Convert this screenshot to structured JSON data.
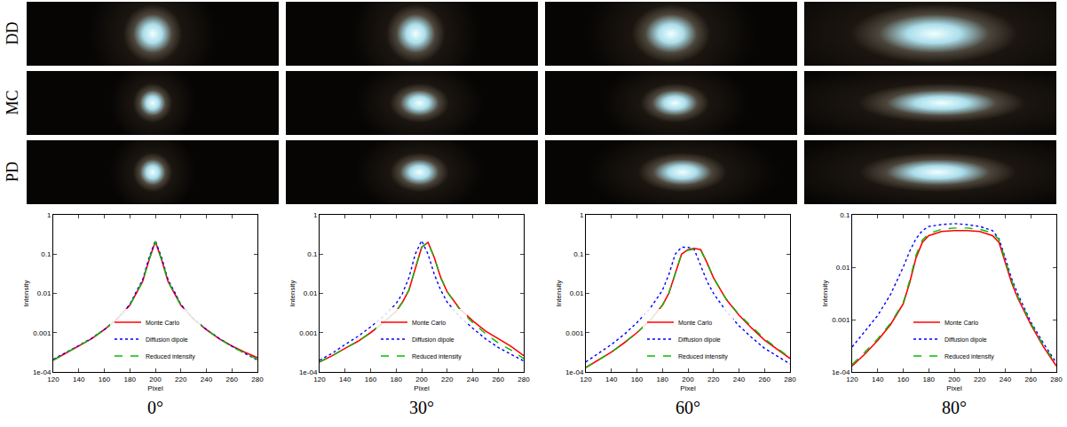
{
  "image_rows": [
    "DD",
    "MC",
    "PD"
  ],
  "chart_data": [
    {
      "type": "line",
      "title": "0°",
      "x_label": "Pixel",
      "y_label": "Intensity",
      "log": "y",
      "grid": false,
      "legend": "bottom",
      "x": [
        120,
        130,
        140,
        150,
        160,
        170,
        180,
        185,
        190,
        195,
        200,
        205,
        210,
        215,
        220,
        230,
        240,
        250,
        260,
        270,
        280
      ],
      "xlim": [
        120,
        280
      ],
      "xticks": [
        120,
        140,
        160,
        180,
        200,
        220,
        240,
        260,
        280
      ],
      "ylim": [
        0.0001,
        1
      ],
      "yticks": [
        {
          "value": 0.0001,
          "label": "1e-04"
        },
        0.001,
        0.01,
        0.1,
        1
      ],
      "series": [
        {
          "name": "Monte Carlo",
          "color": "#ff0000",
          "line_style": "solid",
          "values": [
            0.0002,
            0.0003,
            0.00045,
            0.0007,
            0.0012,
            0.0022,
            0.005,
            0.01,
            0.02,
            0.07,
            0.21,
            0.07,
            0.02,
            0.01,
            0.005,
            0.0022,
            0.0012,
            0.0007,
            0.00046,
            0.00032,
            0.00023
          ]
        },
        {
          "name": "Diffusion dipole",
          "color": "#0000ff",
          "line_style": "dotted",
          "values": [
            0.00021,
            0.00031,
            0.00047,
            0.00072,
            0.0012,
            0.0023,
            0.0052,
            0.011,
            0.022,
            0.08,
            0.22,
            0.08,
            0.022,
            0.011,
            0.0052,
            0.0023,
            0.0012,
            0.00072,
            0.00045,
            0.0003,
            0.0002
          ]
        },
        {
          "name": "Reduced intensity",
          "color": "#00c000",
          "line_style": "dashed",
          "values": [
            0.0002,
            0.0003,
            0.00045,
            0.0007,
            0.0012,
            0.0022,
            0.005,
            0.01,
            0.02,
            0.07,
            0.21,
            0.07,
            0.02,
            0.01,
            0.005,
            0.0022,
            0.0012,
            0.0007,
            0.00044,
            0.0003,
            0.00021
          ]
        }
      ]
    },
    {
      "type": "line",
      "title": "30°",
      "x_label": "Pixel",
      "y_label": "Intensity",
      "log": "y",
      "grid": false,
      "legend": "bottom",
      "x": [
        120,
        130,
        140,
        150,
        160,
        170,
        180,
        185,
        190,
        195,
        200,
        205,
        210,
        215,
        220,
        230,
        240,
        250,
        260,
        270,
        280
      ],
      "xlim": [
        120,
        280
      ],
      "xticks": [
        120,
        140,
        160,
        180,
        200,
        220,
        240,
        260,
        280
      ],
      "ylim": [
        0.0001,
        1
      ],
      "yticks": [
        {
          "value": 0.0001,
          "label": "1e-04"
        },
        0.001,
        0.01,
        0.1,
        1
      ],
      "series": [
        {
          "name": "Monte Carlo",
          "color": "#ff0000",
          "line_style": "solid",
          "values": [
            0.00018,
            0.00026,
            0.0004,
            0.0006,
            0.001,
            0.0018,
            0.0035,
            0.006,
            0.012,
            0.04,
            0.15,
            0.2,
            0.08,
            0.025,
            0.011,
            0.004,
            0.002,
            0.0011,
            0.0007,
            0.00045,
            0.00026
          ]
        },
        {
          "name": "Diffusion dipole",
          "color": "#0000ff",
          "line_style": "dotted",
          "values": [
            0.0002,
            0.0003,
            0.0005,
            0.0008,
            0.0014,
            0.0026,
            0.0055,
            0.01,
            0.025,
            0.1,
            0.22,
            0.1,
            0.03,
            0.012,
            0.006,
            0.0025,
            0.0013,
            0.0007,
            0.00042,
            0.00028,
            0.00019
          ]
        },
        {
          "name": "Reduced intensity",
          "color": "#00c000",
          "line_style": "dashed",
          "values": [
            0.00018,
            0.00026,
            0.0004,
            0.0006,
            0.001,
            0.0018,
            0.0035,
            0.006,
            0.012,
            0.04,
            0.15,
            0.2,
            0.08,
            0.025,
            0.011,
            0.0038,
            0.0018,
            0.00095,
            0.00055,
            0.00036,
            0.00022
          ]
        }
      ]
    },
    {
      "type": "line",
      "title": "60°",
      "x_label": "Pixel",
      "y_label": "Intensity",
      "log": "y",
      "grid": false,
      "legend": "bottom",
      "x": [
        120,
        130,
        140,
        150,
        160,
        170,
        180,
        185,
        190,
        195,
        200,
        205,
        210,
        215,
        220,
        230,
        240,
        250,
        260,
        270,
        280
      ],
      "xlim": [
        120,
        280
      ],
      "xticks": [
        120,
        140,
        160,
        180,
        200,
        220,
        240,
        260,
        280
      ],
      "ylim": [
        0.0001,
        1
      ],
      "yticks": [
        {
          "value": 0.0001,
          "label": "1e-04"
        },
        0.001,
        0.01,
        0.1,
        1
      ],
      "series": [
        {
          "name": "Monte Carlo",
          "color": "#ff0000",
          "line_style": "solid",
          "values": [
            0.00013,
            0.0002,
            0.00032,
            0.00055,
            0.001,
            0.002,
            0.005,
            0.01,
            0.03,
            0.1,
            0.13,
            0.14,
            0.13,
            0.06,
            0.025,
            0.007,
            0.0028,
            0.0013,
            0.00065,
            0.00038,
            0.00022
          ]
        },
        {
          "name": "Diffusion dipole",
          "color": "#0000ff",
          "line_style": "dotted",
          "values": [
            0.00018,
            0.0003,
            0.0005,
            0.0009,
            0.0018,
            0.004,
            0.012,
            0.03,
            0.1,
            0.15,
            0.15,
            0.13,
            0.05,
            0.02,
            0.01,
            0.0035,
            0.0015,
            0.00075,
            0.0004,
            0.00025,
            0.00016
          ]
        },
        {
          "name": "Reduced intensity",
          "color": "#00c000",
          "line_style": "dashed",
          "values": [
            0.00013,
            0.0002,
            0.00032,
            0.00055,
            0.001,
            0.002,
            0.005,
            0.01,
            0.03,
            0.1,
            0.125,
            0.135,
            0.125,
            0.06,
            0.025,
            0.0072,
            0.0029,
            0.0014,
            0.0007,
            0.0004,
            0.00023
          ]
        }
      ]
    },
    {
      "type": "line",
      "title": "80°",
      "x_label": "Pixel",
      "y_label": "Intensity",
      "log": "y",
      "grid": false,
      "legend": "bottom",
      "x": [
        120,
        130,
        140,
        150,
        160,
        165,
        170,
        175,
        180,
        190,
        200,
        210,
        220,
        230,
        235,
        240,
        245,
        250,
        260,
        270,
        280
      ],
      "xlim": [
        120,
        280
      ],
      "xticks": [
        120,
        140,
        160,
        180,
        200,
        220,
        240,
        260,
        280
      ],
      "ylim": [
        0.0001,
        0.1
      ],
      "yticks": [
        {
          "value": 0.0001,
          "label": "1e-04"
        },
        0.001,
        0.01,
        0.1
      ],
      "series": [
        {
          "name": "Monte Carlo",
          "color": "#ff0000",
          "line_style": "solid",
          "values": [
            0.00013,
            0.00022,
            0.0004,
            0.0008,
            0.002,
            0.005,
            0.015,
            0.03,
            0.04,
            0.048,
            0.05,
            0.05,
            0.048,
            0.04,
            0.03,
            0.012,
            0.005,
            0.0025,
            0.0008,
            0.0003,
            0.00013
          ]
        },
        {
          "name": "Diffusion dipole",
          "color": "#0000ff",
          "line_style": "dotted",
          "values": [
            0.0003,
            0.0006,
            0.0012,
            0.003,
            0.01,
            0.02,
            0.035,
            0.05,
            0.06,
            0.065,
            0.068,
            0.065,
            0.06,
            0.05,
            0.035,
            0.015,
            0.006,
            0.003,
            0.0009,
            0.00035,
            0.00015
          ]
        },
        {
          "name": "Reduced intensity",
          "color": "#00c000",
          "line_style": "dashed",
          "values": [
            0.00014,
            0.00024,
            0.00043,
            0.00085,
            0.0021,
            0.0055,
            0.017,
            0.033,
            0.044,
            0.053,
            0.056,
            0.056,
            0.053,
            0.045,
            0.034,
            0.014,
            0.0055,
            0.0027,
            0.00085,
            0.00032,
            0.00014
          ]
        }
      ]
    }
  ]
}
